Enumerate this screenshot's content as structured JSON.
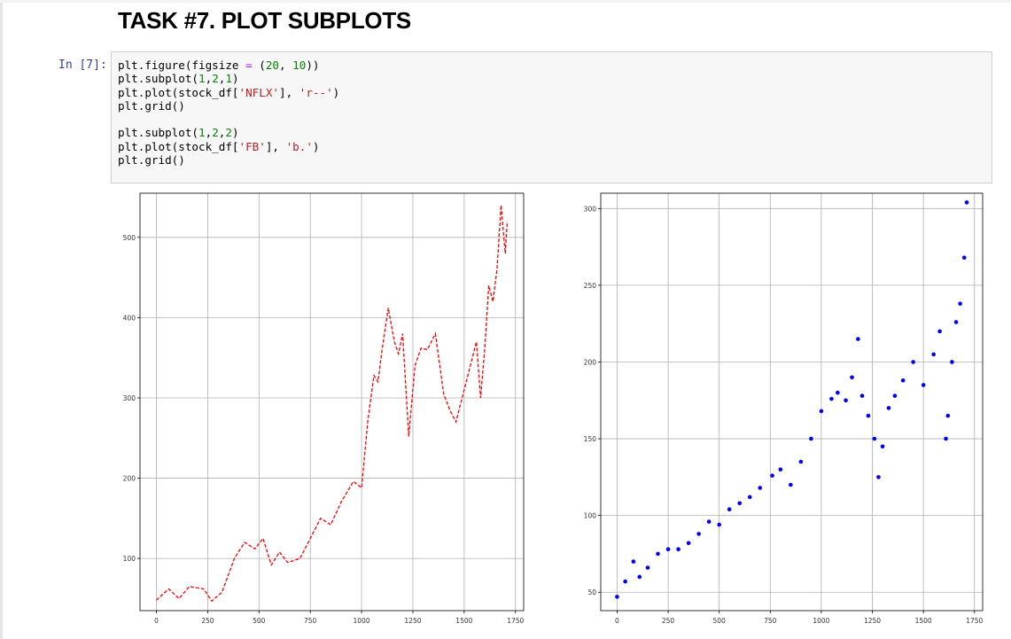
{
  "heading": "TASK #7. PLOT SUBPLOTS",
  "cell": {
    "prompt": "In [7]:",
    "code_lines": [
      [
        {
          "t": "plt.figure(figsize ",
          "c": "n"
        },
        {
          "t": "=",
          "c": "op"
        },
        {
          "t": " (",
          "c": "n"
        },
        {
          "t": "20",
          "c": "num"
        },
        {
          "t": ", ",
          "c": "n"
        },
        {
          "t": "10",
          "c": "num"
        },
        {
          "t": "))",
          "c": "n"
        }
      ],
      [
        {
          "t": "plt.subplot(",
          "c": "n"
        },
        {
          "t": "1",
          "c": "num"
        },
        {
          "t": ",",
          "c": "n"
        },
        {
          "t": "2",
          "c": "num"
        },
        {
          "t": ",",
          "c": "n"
        },
        {
          "t": "1",
          "c": "num"
        },
        {
          "t": ")",
          "c": "n"
        }
      ],
      [
        {
          "t": "plt.plot(stock_df[",
          "c": "n"
        },
        {
          "t": "'NFLX'",
          "c": "str"
        },
        {
          "t": "], ",
          "c": "n"
        },
        {
          "t": "'r--'",
          "c": "str"
        },
        {
          "t": ")",
          "c": "n"
        }
      ],
      [
        {
          "t": "plt.grid()",
          "c": "n"
        }
      ],
      [],
      [
        {
          "t": "plt.subplot(",
          "c": "n"
        },
        {
          "t": "1",
          "c": "num"
        },
        {
          "t": ",",
          "c": "n"
        },
        {
          "t": "2",
          "c": "num"
        },
        {
          "t": ",",
          "c": "n"
        },
        {
          "t": "2",
          "c": "num"
        },
        {
          "t": ")",
          "c": "n"
        }
      ],
      [
        {
          "t": "plt.plot(stock_df[",
          "c": "n"
        },
        {
          "t": "'FB'",
          "c": "str"
        },
        {
          "t": "], ",
          "c": "n"
        },
        {
          "t": "'b.'",
          "c": "str"
        },
        {
          "t": ")",
          "c": "n"
        }
      ],
      [
        {
          "t": "plt.grid()",
          "c": "n"
        }
      ]
    ],
    "syntax_colors": {
      "n": "#000000",
      "op": "#aa22ff",
      "num": "#008800",
      "str": "#ba2121"
    }
  },
  "chart_data": [
    {
      "type": "line",
      "style": "dashed",
      "color": "#ff0000",
      "grid": true,
      "xlim": [
        -80,
        1790
      ],
      "ylim": [
        35,
        555
      ],
      "xticks": [
        0,
        250,
        500,
        750,
        1000,
        1250,
        1500,
        1750
      ],
      "yticks": [
        100,
        200,
        300,
        400,
        500
      ],
      "series": [
        {
          "x": [
            0,
            60,
            110,
            160,
            230,
            270,
            320,
            380,
            430,
            480,
            520,
            560,
            600,
            640,
            700,
            760,
            800,
            850,
            900,
            960,
            1000,
            1030,
            1060,
            1080,
            1100,
            1130,
            1160,
            1180,
            1200,
            1230,
            1260,
            1290,
            1320,
            1360,
            1400,
            1430,
            1460,
            1480,
            1510,
            1560,
            1580,
            1600,
            1620,
            1640,
            1660,
            1680,
            1700,
            1710
          ],
          "y": [
            48,
            62,
            50,
            65,
            62,
            47,
            58,
            100,
            120,
            112,
            125,
            92,
            108,
            95,
            100,
            130,
            150,
            142,
            170,
            196,
            188,
            270,
            328,
            320,
            360,
            412,
            370,
            355,
            380,
            252,
            340,
            362,
            360,
            380,
            305,
            285,
            270,
            290,
            320,
            370,
            300,
            360,
            440,
            420,
            460,
            540,
            480,
            520
          ]
        }
      ]
    },
    {
      "type": "scatter",
      "marker": "point",
      "color": "#0000ff",
      "grid": true,
      "xlim": [
        -80,
        1790
      ],
      "ylim": [
        38,
        310
      ],
      "xticks": [
        0,
        250,
        500,
        750,
        1000,
        1250,
        1500,
        1750
      ],
      "yticks": [
        50,
        100,
        150,
        200,
        250,
        300
      ],
      "series": [
        {
          "x": [
            0,
            40,
            80,
            110,
            150,
            200,
            250,
            300,
            350,
            400,
            450,
            500,
            550,
            600,
            650,
            700,
            760,
            800,
            850,
            900,
            950,
            1000,
            1050,
            1080,
            1120,
            1150,
            1180,
            1200,
            1230,
            1260,
            1280,
            1300,
            1330,
            1360,
            1400,
            1450,
            1500,
            1550,
            1580,
            1610,
            1620,
            1640,
            1660,
            1680,
            1700,
            1712
          ],
          "y": [
            47,
            57,
            70,
            60,
            66,
            75,
            78,
            78,
            82,
            88,
            96,
            94,
            104,
            108,
            112,
            118,
            126,
            130,
            120,
            135,
            150,
            168,
            176,
            180,
            175,
            190,
            215,
            178,
            165,
            150,
            125,
            145,
            170,
            178,
            188,
            200,
            185,
            205,
            220,
            150,
            165,
            200,
            226,
            238,
            268,
            304
          ]
        }
      ]
    }
  ]
}
